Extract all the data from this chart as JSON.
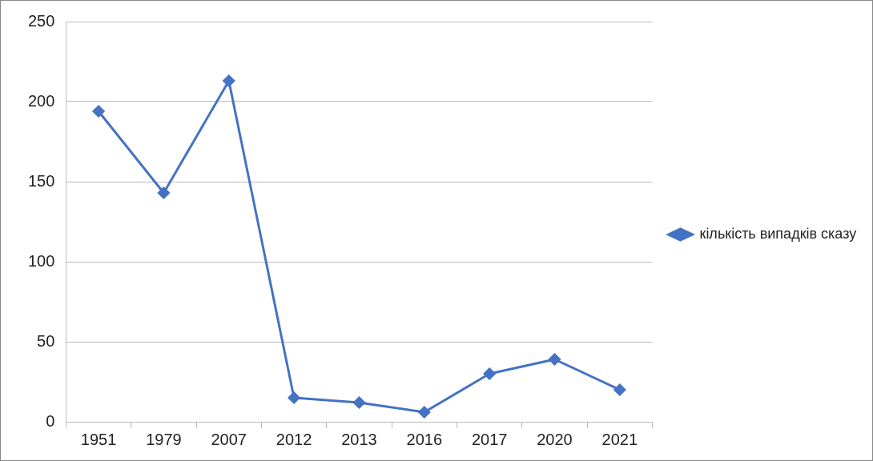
{
  "chart_data": {
    "type": "line",
    "categories": [
      "1951",
      "1979",
      "2007",
      "2012",
      "2013",
      "2016",
      "2017",
      "2020",
      "2021"
    ],
    "series": [
      {
        "name": "кількість випадків сказу",
        "color": "#4472c4",
        "values": [
          194,
          143,
          213,
          15,
          12,
          6,
          30,
          39,
          20
        ]
      }
    ],
    "ylim": [
      0,
      250
    ],
    "yticks": [
      0,
      50,
      100,
      150,
      200,
      250
    ],
    "grid": "y",
    "legend": "right",
    "marker": "diamond",
    "line_style": "solid"
  }
}
